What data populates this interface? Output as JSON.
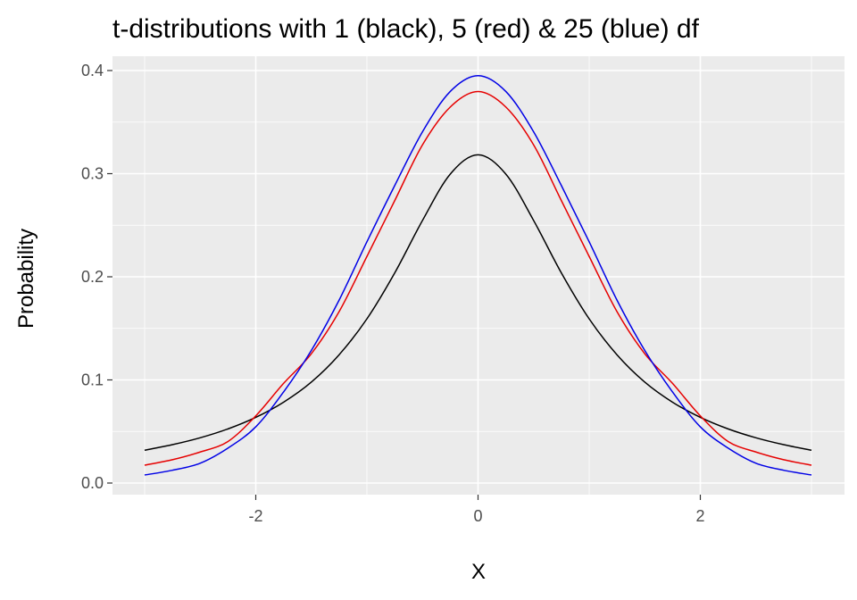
{
  "chart_data": {
    "type": "line",
    "title": "t-distributions with 1 (black), 5 (red) & 25 (blue) df",
    "xlabel": "X",
    "ylabel": "Probability",
    "xlim": [
      -3,
      3
    ],
    "ylim": [
      0,
      0.4
    ],
    "x_ticks": [
      -2,
      0,
      2
    ],
    "x_tick_labels": [
      "-2",
      "0",
      "2"
    ],
    "y_ticks": [
      0.0,
      0.1,
      0.2,
      0.3,
      0.4
    ],
    "y_tick_labels": [
      "0.0",
      "0.1",
      "0.2",
      "0.3",
      "0.4"
    ],
    "grid": true,
    "legend": "none",
    "x": [
      -3.0,
      -2.75,
      -2.5,
      -2.25,
      -2.0,
      -1.75,
      -1.5,
      -1.25,
      -1.0,
      -0.75,
      -0.5,
      -0.25,
      0.0,
      0.25,
      0.5,
      0.75,
      1.0,
      1.25,
      1.5,
      1.75,
      2.0,
      2.25,
      2.5,
      2.75,
      3.0
    ],
    "series": [
      {
        "color": "#000000",
        "values": [
          0.0318,
          0.0372,
          0.0439,
          0.0525,
          0.0637,
          0.0784,
          0.0979,
          0.1244,
          0.1592,
          0.2037,
          0.2546,
          0.2996,
          0.3183,
          0.2996,
          0.2546,
          0.2037,
          0.1592,
          0.1244,
          0.0979,
          0.0784,
          0.0637,
          0.0525,
          0.0439,
          0.0372,
          0.0318
        ]
      },
      {
        "color": "#e60000",
        "values": [
          0.0173,
          0.0226,
          0.0301,
          0.0403,
          0.0651,
          0.0966,
          0.1254,
          0.1662,
          0.2197,
          0.2738,
          0.3279,
          0.3646,
          0.3796,
          0.3646,
          0.3279,
          0.2738,
          0.2197,
          0.1662,
          0.1254,
          0.0966,
          0.0651,
          0.0403,
          0.0301,
          0.0226,
          0.0173
        ]
      },
      {
        "color": "#0000e6",
        "values": [
          0.0078,
          0.0124,
          0.0192,
          0.0339,
          0.0545,
          0.0883,
          0.1286,
          0.1774,
          0.2339,
          0.2884,
          0.3406,
          0.3797,
          0.395,
          0.3797,
          0.3406,
          0.2884,
          0.2339,
          0.1774,
          0.1286,
          0.0883,
          0.0545,
          0.0339,
          0.0192,
          0.0124,
          0.0078
        ]
      }
    ]
  }
}
